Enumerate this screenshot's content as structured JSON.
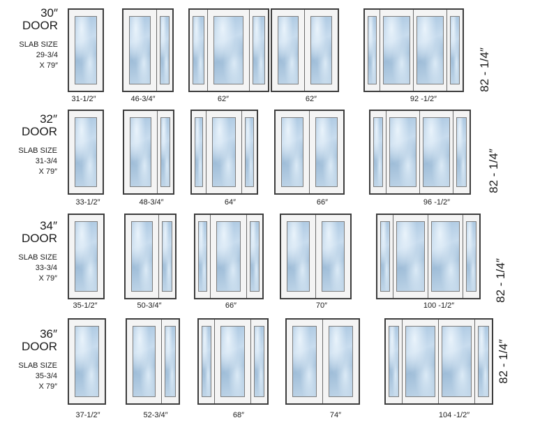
{
  "rows": [
    {
      "door_size": "30″",
      "door_word": "DOOR",
      "slab_label": "SLAB SIZE",
      "slab_width": "29-3/4",
      "slab_height": "X 79″",
      "height_label": "82 - 1/4″",
      "units": [
        {
          "type": "single",
          "width": "31-1/2″"
        },
        {
          "type": "door-sidelite",
          "width": "46-3/4″"
        },
        {
          "type": "door-two-sidelites",
          "width": "62″"
        },
        {
          "type": "double-door",
          "width": "62″"
        },
        {
          "type": "double-door-two-sidelites",
          "width": "92 -1/2″"
        }
      ]
    },
    {
      "door_size": "32″",
      "door_word": "DOOR",
      "slab_label": "SLAB SIZE",
      "slab_width": "31-3/4",
      "slab_height": "X 79″",
      "height_label": "82 - 1/4″",
      "units": [
        {
          "type": "single",
          "width": "33-1/2″"
        },
        {
          "type": "door-sidelite",
          "width": "48-3/4″"
        },
        {
          "type": "door-two-sidelites",
          "width": "64″"
        },
        {
          "type": "double-door",
          "width": "66″"
        },
        {
          "type": "double-door-two-sidelites",
          "width": "96 -1/2″"
        }
      ]
    },
    {
      "door_size": "34″",
      "door_word": "DOOR",
      "slab_label": "SLAB SIZE",
      "slab_width": "33-3/4",
      "slab_height": "X 79″",
      "height_label": "82 - 1/4″",
      "units": [
        {
          "type": "single",
          "width": "35-1/2″"
        },
        {
          "type": "door-sidelite",
          "width": "50-3/4″"
        },
        {
          "type": "door-two-sidelites",
          "width": "66″"
        },
        {
          "type": "double-door",
          "width": "70″"
        },
        {
          "type": "double-door-two-sidelites",
          "width": "100 -1/2″"
        }
      ]
    },
    {
      "door_size": "36″",
      "door_word": "DOOR",
      "slab_label": "SLAB SIZE",
      "slab_width": "35-3/4",
      "slab_height": "X 79″",
      "height_label": "82 - 1/4″",
      "units": [
        {
          "type": "single",
          "width": "37-1/2″"
        },
        {
          "type": "door-sidelite",
          "width": "52-3/4″"
        },
        {
          "type": "door-two-sidelites",
          "width": "68″"
        },
        {
          "type": "double-door",
          "width": "74″"
        },
        {
          "type": "double-door-two-sidelites",
          "width": "104 -1/2″"
        }
      ]
    }
  ]
}
